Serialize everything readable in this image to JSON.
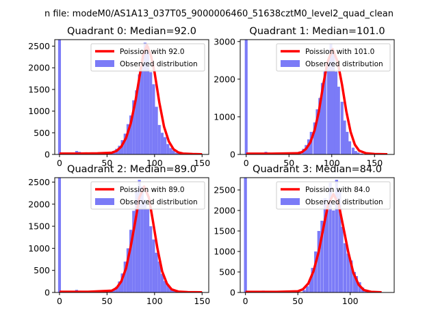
{
  "figure": {
    "suptitle": "n file: modeM0/AS1A13_037T05_9000006460_51638cztM0_level2_quad_clean"
  },
  "colors": {
    "histogram": "#7b7bf7",
    "poisson": "#ff0000",
    "axes": "#000000"
  },
  "chart_data": [
    {
      "type": "bar",
      "title": "Quadrant 0: Median=92.0",
      "median": 92.0,
      "xticks": [
        0,
        50,
        100,
        150
      ],
      "yticks": [
        0,
        500,
        1000,
        1500,
        2000,
        2500
      ],
      "xlim": [
        -5,
        157
      ],
      "ylim": [
        0,
        2650
      ],
      "legend": [
        "Poission with 92.0",
        "Observed distribution"
      ],
      "legend_position": "top-right",
      "bin_width": 3,
      "observed": {
        "x": [
          0,
          15,
          18,
          21,
          24,
          27,
          30,
          33,
          36,
          39,
          42,
          45,
          48,
          51,
          54,
          57,
          60,
          63,
          66,
          69,
          72,
          75,
          78,
          81,
          84,
          87,
          90,
          93,
          96,
          99,
          102,
          105,
          108,
          111,
          114,
          117,
          120,
          123,
          126,
          129,
          132,
          135
        ],
        "values": [
          2650,
          40,
          80,
          60,
          45,
          25,
          15,
          10,
          8,
          6,
          6,
          8,
          10,
          20,
          40,
          80,
          130,
          200,
          330,
          480,
          700,
          900,
          1250,
          1480,
          1850,
          2130,
          2580,
          2500,
          1900,
          1620,
          1100,
          680,
          500,
          400,
          240,
          150,
          90,
          40,
          25,
          15,
          10,
          5
        ]
      },
      "poisson": {
        "x": [
          0,
          20,
          40,
          55,
          60,
          65,
          70,
          75,
          80,
          85,
          88,
          92,
          96,
          100,
          105,
          110,
          115,
          120,
          125,
          130,
          140,
          150
        ],
        "values": [
          20,
          20,
          25,
          40,
          80,
          180,
          380,
          720,
          1250,
          1900,
          2300,
          2520,
          2300,
          1900,
          1200,
          640,
          300,
          120,
          45,
          20,
          10,
          5
        ]
      }
    },
    {
      "type": "bar",
      "title": "Quadrant 1: Median=101.0",
      "median": 101.0,
      "xticks": [
        0,
        50,
        100,
        150
      ],
      "yticks": [
        0,
        1000,
        2000,
        3000
      ],
      "xlim": [
        -7,
        173
      ],
      "ylim": [
        0,
        3050
      ],
      "legend": [
        "Poission with 101.0",
        "Observed distribution"
      ],
      "legend_position": "top-right",
      "bin_width": 3.3,
      "observed": {
        "x": [
          0,
          20,
          23,
          26,
          30,
          40,
          50,
          55,
          60,
          63,
          67,
          70,
          73,
          76,
          80,
          83,
          86,
          89,
          92,
          96,
          99,
          102,
          105,
          108,
          112,
          115,
          118,
          121,
          125,
          128,
          131,
          135,
          140
        ],
        "values": [
          3050,
          45,
          70,
          50,
          20,
          10,
          12,
          30,
          45,
          80,
          150,
          250,
          400,
          600,
          850,
          1200,
          1500,
          1900,
          2200,
          2500,
          2950,
          2700,
          2200,
          1800,
          1400,
          900,
          600,
          350,
          180,
          90,
          50,
          25,
          10
        ]
      },
      "poisson": {
        "x": [
          0,
          30,
          60,
          65,
          70,
          75,
          80,
          85,
          90,
          95,
          101,
          107,
          112,
          117,
          122,
          127,
          132,
          140,
          150,
          165
        ],
        "values": [
          20,
          20,
          30,
          60,
          150,
          320,
          650,
          1150,
          1850,
          2450,
          2800,
          2450,
          1850,
          1150,
          600,
          260,
          100,
          30,
          10,
          5
        ]
      }
    },
    {
      "type": "bar",
      "title": "Quadrant 2: Median=89.0",
      "median": 89.0,
      "xticks": [
        0,
        50,
        100,
        150
      ],
      "yticks": [
        0,
        500,
        1000,
        1500,
        2000,
        2500
      ],
      "xlim": [
        -5,
        157
      ],
      "ylim": [
        0,
        2600
      ],
      "legend": [
        "Poission with 89.0",
        "Observed distribution"
      ],
      "legend_position": "top-right",
      "bin_width": 3,
      "observed": {
        "x": [
          0,
          15,
          18,
          21,
          24,
          27,
          30,
          36,
          42,
          48,
          54,
          57,
          60,
          63,
          66,
          69,
          72,
          75,
          78,
          81,
          84,
          87,
          90,
          93,
          96,
          99,
          102,
          105,
          108,
          111,
          114,
          117,
          120,
          123,
          126,
          129
        ],
        "values": [
          2600,
          30,
          60,
          40,
          20,
          10,
          8,
          6,
          8,
          15,
          30,
          70,
          130,
          250,
          430,
          700,
          1000,
          1420,
          1850,
          2300,
          2550,
          2400,
          2100,
          1900,
          1500,
          1200,
          900,
          700,
          420,
          260,
          180,
          100,
          70,
          30,
          20,
          10
        ]
      },
      "poisson": {
        "x": [
          0,
          30,
          55,
          60,
          65,
          70,
          75,
          80,
          84,
          89,
          94,
          98,
          103,
          108,
          113,
          118,
          125,
          135,
          150
        ],
        "values": [
          15,
          15,
          40,
          100,
          250,
          550,
          1050,
          1650,
          2150,
          2400,
          2150,
          1650,
          1000,
          480,
          200,
          70,
          20,
          8,
          5
        ]
      }
    },
    {
      "type": "bar",
      "title": "Quadrant 3: Median=84.0",
      "median": 84.0,
      "xticks": [
        0,
        50,
        100
      ],
      "yticks": [
        0,
        500,
        1000,
        1500,
        2000,
        2500
      ],
      "xlim": [
        -5,
        142
      ],
      "ylim": [
        0,
        2800
      ],
      "legend": [
        "Poission with 84.0",
        "Observed distribution"
      ],
      "legend_position": "top-right",
      "bin_width": 2.8,
      "observed": {
        "x": [
          0,
          14,
          17,
          20,
          23,
          26,
          30,
          40,
          50,
          56,
          59,
          62,
          64,
          67,
          70,
          73,
          76,
          78,
          81,
          84,
          87,
          90,
          92,
          95,
          98,
          101,
          104,
          106,
          109,
          112,
          115,
          118,
          120
        ],
        "values": [
          2800,
          20,
          45,
          30,
          15,
          8,
          6,
          6,
          20,
          60,
          150,
          300,
          600,
          1000,
          1500,
          1750,
          2300,
          2000,
          2680,
          2000,
          2750,
          2500,
          1600,
          1200,
          950,
          780,
          500,
          400,
          250,
          120,
          70,
          40,
          20
        ]
      },
      "poisson": {
        "x": [
          0,
          30,
          50,
          55,
          60,
          65,
          70,
          75,
          79,
          84,
          89,
          93,
          98,
          103,
          108,
          113,
          120,
          130
        ],
        "values": [
          15,
          15,
          30,
          80,
          220,
          520,
          1000,
          1650,
          2150,
          2400,
          2150,
          1650,
          1000,
          480,
          190,
          60,
          15,
          5
        ]
      }
    }
  ]
}
